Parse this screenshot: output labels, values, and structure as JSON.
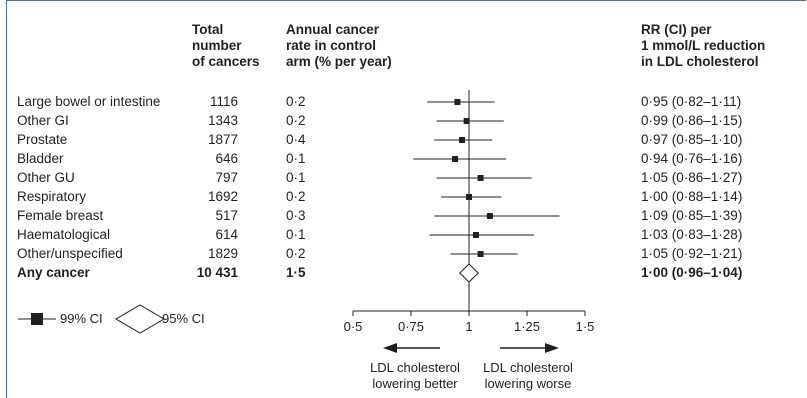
{
  "headers": {
    "total": "Total\nnumber\nof cancers",
    "rate": "Annual cancer\nrate in control\narm (% per year)",
    "rr": "RR (CI) per\n1 mmol/L reduction\nin LDL cholesterol"
  },
  "rows": [
    {
      "label": "Large bowel or intestine",
      "total": "1116",
      "rate": "0·2",
      "rr_text": "0·95 (0·82–1·11)"
    },
    {
      "label": "Other GI",
      "total": "1343",
      "rate": "0·2",
      "rr_text": "0·99 (0·86–1·15)"
    },
    {
      "label": "Prostate",
      "total": "1877",
      "rate": "0·4",
      "rr_text": "0·97 (0·85–1·10)"
    },
    {
      "label": "Bladder",
      "total": "646",
      "rate": "0·1",
      "rr_text": "0·94 (0·76–1·16)"
    },
    {
      "label": "Other GU",
      "total": "797",
      "rate": "0·1",
      "rr_text": "1·05 (0·86–1·27)"
    },
    {
      "label": "Respiratory",
      "total": "1692",
      "rate": "0·2",
      "rr_text": "1·00 (0·88–1·14)"
    },
    {
      "label": "Female breast",
      "total": "517",
      "rate": "0·3",
      "rr_text": "1·09 (0·85–1·39)"
    },
    {
      "label": "Haematological",
      "total": "614",
      "rate": "0·1",
      "rr_text": "1·03 (0·83–1·28)"
    },
    {
      "label": "Other/unspecified",
      "total": "1829",
      "rate": "0·2",
      "rr_text": "1·05 (0·92–1·21)"
    }
  ],
  "total_row": {
    "label": "Any cancer",
    "total": "10 431",
    "rate": "1·5",
    "rr_text": "1·00 (0·96–1·04)"
  },
  "legend": {
    "ci99": "99% CI",
    "ci95": "95% CI"
  },
  "axis": {
    "ticks": [
      "0·5",
      "0·75",
      "1",
      "1·25",
      "1·5"
    ],
    "left_note": "LDL cholesterol\nlowering better",
    "right_note": "LDL cholesterol\nlowering worse"
  },
  "colors": {
    "border": "#4a6fa5",
    "ink": "#231f20"
  },
  "chart_data": {
    "type": "forest",
    "x_axis": {
      "min": 0.5,
      "max": 1.5,
      "ticks": [
        0.5,
        0.75,
        1,
        1.25,
        1.5
      ],
      "reference": 1
    },
    "series": [
      {
        "category": "Large bowel or intestine",
        "estimate": 0.95,
        "lower99": 0.82,
        "upper99": 1.11
      },
      {
        "category": "Other GI",
        "estimate": 0.99,
        "lower99": 0.86,
        "upper99": 1.15
      },
      {
        "category": "Prostate",
        "estimate": 0.97,
        "lower99": 0.85,
        "upper99": 1.1
      },
      {
        "category": "Bladder",
        "estimate": 0.94,
        "lower99": 0.76,
        "upper99": 1.16
      },
      {
        "category": "Other GU",
        "estimate": 1.05,
        "lower99": 0.86,
        "upper99": 1.27
      },
      {
        "category": "Respiratory",
        "estimate": 1.0,
        "lower99": 0.88,
        "upper99": 1.14
      },
      {
        "category": "Female breast",
        "estimate": 1.09,
        "lower99": 0.85,
        "upper99": 1.39
      },
      {
        "category": "Haematological",
        "estimate": 1.03,
        "lower99": 0.83,
        "upper99": 1.28
      },
      {
        "category": "Other/unspecified",
        "estimate": 1.05,
        "lower99": 0.92,
        "upper99": 1.21
      }
    ],
    "summary": {
      "category": "Any cancer",
      "estimate": 1.0,
      "lower95": 0.96,
      "upper95": 1.04
    }
  }
}
